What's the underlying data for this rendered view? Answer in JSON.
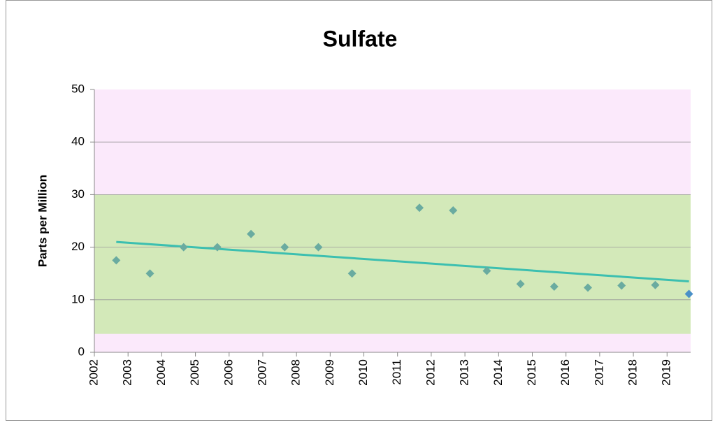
{
  "chart_data": {
    "type": "scatter",
    "title": "Sulfate",
    "y_label": "Parts per Million",
    "xlim": [
      2002,
      2019.7
    ],
    "xticks": [
      2002,
      2003,
      2004,
      2005,
      2006,
      2007,
      2008,
      2009,
      2010,
      2011,
      2012,
      2013,
      2014,
      2015,
      2016,
      2017,
      2018,
      2019
    ],
    "ylim": [
      0,
      50
    ],
    "yticks": [
      0,
      10,
      20,
      30,
      40,
      50
    ],
    "grid": true,
    "bands": [
      {
        "from": 0,
        "to": 50,
        "color": "#fbe9fb"
      },
      {
        "from": 3.5,
        "to": 30,
        "color": "#d3e9b9"
      }
    ],
    "series": [
      {
        "x": [
          2002.65,
          2003.65,
          2004.65,
          2005.65,
          2006.65,
          2007.65,
          2008.65,
          2009.65,
          2011.65,
          2012.65,
          2013.65,
          2014.65,
          2015.65,
          2016.65,
          2017.65,
          2018.65,
          2019.65
        ],
        "values": [
          17.5,
          15,
          20,
          20,
          22.5,
          20,
          20,
          15,
          27.5,
          27,
          15.5,
          13,
          12.5,
          12.3,
          12.7,
          12.8,
          11.1
        ],
        "colors": [
          "#6aaba0",
          "#6aaba0",
          "#6aaba0",
          "#6aaba0",
          "#6aaba0",
          "#6aaba0",
          "#6aaba0",
          "#6aaba0",
          "#6aaba0",
          "#6aaba0",
          "#6aaba0",
          "#6aaba0",
          "#6aaba0",
          "#6aaba0",
          "#6aaba0",
          "#6aaba0",
          "#4a90c8"
        ]
      }
    ],
    "trendline": {
      "x": [
        2002.65,
        2019.65
      ],
      "values": [
        21,
        13.5
      ],
      "color": "#3cbfb0"
    }
  }
}
